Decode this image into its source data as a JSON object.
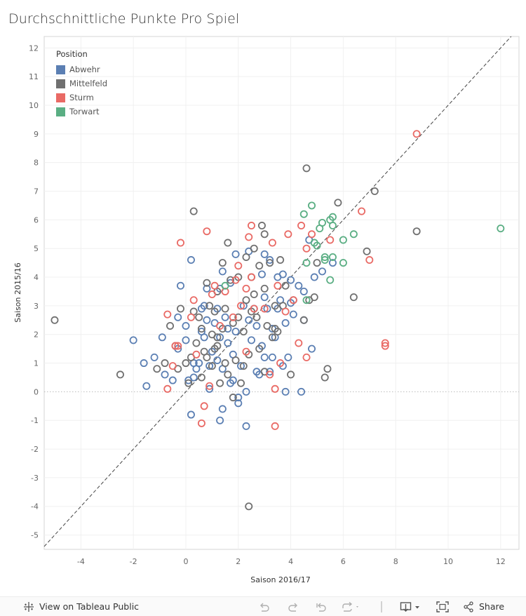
{
  "title": "Durchschnittliche Punkte Pro Spiel",
  "legend": {
    "title": "Position",
    "items": [
      {
        "label": "Abwehr",
        "color": "#5b7fb3"
      },
      {
        "label": "Mittelfeld",
        "color": "#707070"
      },
      {
        "label": "Sturm",
        "color": "#e96a65"
      },
      {
        "label": "Torwart",
        "color": "#5aae83"
      }
    ]
  },
  "toolbar": {
    "view_label": "View on Tableau Public",
    "share_label": "Share"
  },
  "chart_data": {
    "type": "scatter",
    "title": "Durchschnittliche Punkte Pro Spiel",
    "xlabel": "Saison 2016/17",
    "ylabel": "Saison 2015/16",
    "xlim": [
      -5.4,
      12.7
    ],
    "ylim": [
      -5.5,
      12.4
    ],
    "xticks": [
      -4,
      -2,
      0,
      2,
      4,
      6,
      8,
      10,
      12
    ],
    "yticks": [
      -5,
      -4,
      -3,
      -2,
      -1,
      0,
      1,
      2,
      3,
      4,
      5,
      6,
      7,
      8,
      9,
      10,
      11,
      12
    ],
    "reference_line": "y = x",
    "series": [
      {
        "name": "Abwehr",
        "color": "#5b7fb3",
        "points": [
          [
            -2.0,
            1.8
          ],
          [
            -1.6,
            1.0
          ],
          [
            -1.2,
            1.2
          ],
          [
            -0.9,
            1.9
          ],
          [
            -0.8,
            0.6
          ],
          [
            -1.5,
            0.2
          ],
          [
            -0.5,
            0.4
          ],
          [
            -0.3,
            1.5
          ],
          [
            -0.3,
            2.6
          ],
          [
            -0.2,
            3.7
          ],
          [
            0.0,
            1.8
          ],
          [
            0.0,
            2.3
          ],
          [
            0.1,
            0.4
          ],
          [
            0.2,
            4.6
          ],
          [
            0.2,
            -0.8
          ],
          [
            0.3,
            1.0
          ],
          [
            0.3,
            0.5
          ],
          [
            0.5,
            1.0
          ],
          [
            0.6,
            2.9
          ],
          [
            0.7,
            3.0
          ],
          [
            0.7,
            1.9
          ],
          [
            0.8,
            3.6
          ],
          [
            0.8,
            2.5
          ],
          [
            0.9,
            0.9
          ],
          [
            0.9,
            0.1
          ],
          [
            1.0,
            1.4
          ],
          [
            1.1,
            2.4
          ],
          [
            1.2,
            2.9
          ],
          [
            1.2,
            1.1
          ],
          [
            1.3,
            3.6
          ],
          [
            1.3,
            1.9
          ],
          [
            1.3,
            -1.0
          ],
          [
            1.4,
            4.2
          ],
          [
            1.4,
            0.8
          ],
          [
            1.4,
            -0.6
          ],
          [
            1.5,
            2.6
          ],
          [
            1.6,
            1.7
          ],
          [
            1.6,
            2.2
          ],
          [
            1.7,
            3.8
          ],
          [
            1.8,
            1.3
          ],
          [
            1.8,
            0.4
          ],
          [
            1.9,
            4.8
          ],
          [
            1.9,
            2.1
          ],
          [
            2.0,
            -0.2
          ],
          [
            2.0,
            -0.4
          ],
          [
            2.2,
            3.0
          ],
          [
            2.3,
            0.0
          ],
          [
            2.3,
            -1.2
          ],
          [
            2.4,
            4.9
          ],
          [
            2.4,
            2.5
          ],
          [
            2.5,
            1.8
          ],
          [
            2.6,
            2.9
          ],
          [
            2.7,
            0.7
          ],
          [
            2.8,
            0.6
          ],
          [
            2.9,
            1.6
          ],
          [
            2.9,
            4.1
          ],
          [
            3.0,
            3.3
          ],
          [
            3.0,
            1.2
          ],
          [
            3.0,
            4.8
          ],
          [
            3.1,
            2.9
          ],
          [
            3.2,
            4.6
          ],
          [
            3.3,
            1.2
          ],
          [
            3.3,
            2.2
          ],
          [
            3.4,
            1.9
          ],
          [
            3.5,
            4.0
          ],
          [
            3.5,
            2.9
          ],
          [
            3.6,
            3.2
          ],
          [
            3.7,
            0.9
          ],
          [
            3.7,
            4.1
          ],
          [
            3.8,
            2.4
          ],
          [
            3.8,
            0.0
          ],
          [
            3.9,
            1.2
          ],
          [
            4.0,
            3.9
          ],
          [
            4.0,
            3.1
          ],
          [
            4.1,
            2.7
          ],
          [
            4.3,
            3.7
          ],
          [
            4.4,
            0.0
          ],
          [
            4.5,
            3.5
          ],
          [
            4.5,
            2.5
          ],
          [
            4.7,
            5.3
          ],
          [
            4.8,
            1.5
          ],
          [
            4.9,
            4.0
          ],
          [
            5.2,
            4.2
          ],
          [
            5.6,
            4.5
          ],
          [
            3.2,
            0.7
          ],
          [
            2.1,
            0.9
          ],
          [
            0.4,
            0.8
          ],
          [
            0.6,
            2.1
          ],
          [
            1.7,
            0.3
          ],
          [
            2.7,
            2.3
          ]
        ]
      },
      {
        "name": "Mittelfeld",
        "color": "#707070",
        "points": [
          [
            -5.0,
            2.5
          ],
          [
            -2.5,
            0.6
          ],
          [
            -1.1,
            0.8
          ],
          [
            -0.8,
            1.0
          ],
          [
            -0.6,
            2.3
          ],
          [
            -0.3,
            0.8
          ],
          [
            -0.2,
            2.9
          ],
          [
            0.0,
            1.0
          ],
          [
            0.1,
            0.3
          ],
          [
            0.2,
            1.2
          ],
          [
            0.3,
            2.8
          ],
          [
            0.3,
            6.3
          ],
          [
            0.4,
            1.7
          ],
          [
            0.5,
            2.6
          ],
          [
            0.6,
            0.5
          ],
          [
            0.6,
            2.2
          ],
          [
            0.7,
            1.4
          ],
          [
            0.8,
            3.8
          ],
          [
            0.9,
            3.0
          ],
          [
            1.0,
            2.0
          ],
          [
            1.0,
            0.9
          ],
          [
            1.1,
            2.8
          ],
          [
            1.1,
            1.5
          ],
          [
            1.2,
            1.9
          ],
          [
            1.2,
            3.5
          ],
          [
            1.3,
            0.3
          ],
          [
            1.4,
            4.5
          ],
          [
            1.4,
            2.2
          ],
          [
            1.5,
            1.0
          ],
          [
            1.6,
            0.6
          ],
          [
            1.6,
            5.2
          ],
          [
            1.7,
            3.9
          ],
          [
            1.8,
            2.4
          ],
          [
            1.8,
            -0.2
          ],
          [
            1.9,
            1.1
          ],
          [
            2.0,
            4.0
          ],
          [
            2.1,
            0.3
          ],
          [
            2.2,
            2.1
          ],
          [
            2.3,
            4.7
          ],
          [
            2.3,
            3.2
          ],
          [
            2.4,
            1.3
          ],
          [
            2.4,
            -4.0
          ],
          [
            2.5,
            2.8
          ],
          [
            2.5,
            4.0
          ],
          [
            2.6,
            5.0
          ],
          [
            2.7,
            2.6
          ],
          [
            2.8,
            1.5
          ],
          [
            2.8,
            4.4
          ],
          [
            2.9,
            5.8
          ],
          [
            3.0,
            0.7
          ],
          [
            3.0,
            3.6
          ],
          [
            3.1,
            2.3
          ],
          [
            3.2,
            4.5
          ],
          [
            3.3,
            1.9
          ],
          [
            3.4,
            3.0
          ],
          [
            3.5,
            2.1
          ],
          [
            3.6,
            4.6
          ],
          [
            3.7,
            3.0
          ],
          [
            3.8,
            3.7
          ],
          [
            4.0,
            0.6
          ],
          [
            4.1,
            3.2
          ],
          [
            4.5,
            2.5
          ],
          [
            4.6,
            7.8
          ],
          [
            4.7,
            3.2
          ],
          [
            4.9,
            3.3
          ],
          [
            5.0,
            4.5
          ],
          [
            5.3,
            0.5
          ],
          [
            5.4,
            0.8
          ],
          [
            5.8,
            6.6
          ],
          [
            6.4,
            3.3
          ],
          [
            6.9,
            4.9
          ],
          [
            7.2,
            7.0
          ],
          [
            8.8,
            5.6
          ],
          [
            2.2,
            0.9
          ],
          [
            1.5,
            2.9
          ],
          [
            0.8,
            1.2
          ],
          [
            3.4,
            2.2
          ],
          [
            2.0,
            2.6
          ],
          [
            2.6,
            3.4
          ],
          [
            3.0,
            5.5
          ],
          [
            1.2,
            1.6
          ],
          [
            -0.4,
            1.6
          ]
        ]
      },
      {
        "name": "Sturm",
        "color": "#e96a65",
        "points": [
          [
            -0.7,
            0.1
          ],
          [
            -0.7,
            2.7
          ],
          [
            -0.5,
            0.9
          ],
          [
            -0.4,
            1.6
          ],
          [
            -0.2,
            5.2
          ],
          [
            0.2,
            2.6
          ],
          [
            0.4,
            1.3
          ],
          [
            0.6,
            -1.1
          ],
          [
            0.7,
            -0.5
          ],
          [
            0.8,
            5.6
          ],
          [
            0.9,
            0.2
          ],
          [
            1.0,
            3.4
          ],
          [
            1.1,
            3.7
          ],
          [
            1.3,
            2.3
          ],
          [
            1.5,
            3.5
          ],
          [
            1.8,
            2.6
          ],
          [
            1.9,
            3.9
          ],
          [
            2.0,
            4.4
          ],
          [
            2.1,
            3.0
          ],
          [
            2.3,
            3.6
          ],
          [
            2.4,
            5.4
          ],
          [
            2.5,
            4.0
          ],
          [
            2.5,
            5.8
          ],
          [
            2.6,
            2.9
          ],
          [
            3.0,
            2.9
          ],
          [
            3.3,
            5.2
          ],
          [
            3.4,
            0.1
          ],
          [
            3.4,
            -1.2
          ],
          [
            3.5,
            3.7
          ],
          [
            3.6,
            1.0
          ],
          [
            3.8,
            2.8
          ],
          [
            3.9,
            5.5
          ],
          [
            4.1,
            3.2
          ],
          [
            4.3,
            1.7
          ],
          [
            4.4,
            5.8
          ],
          [
            4.6,
            1.2
          ],
          [
            4.6,
            5.0
          ],
          [
            4.8,
            5.5
          ],
          [
            5.5,
            5.3
          ],
          [
            6.7,
            6.3
          ],
          [
            7.0,
            4.6
          ],
          [
            7.6,
            1.7
          ],
          [
            7.6,
            1.6
          ],
          [
            8.8,
            9.0
          ],
          [
            2.3,
            1.4
          ],
          [
            3.2,
            0.6
          ],
          [
            0.3,
            3.2
          ],
          [
            -0.3,
            1.6
          ]
        ]
      },
      {
        "name": "Torwart",
        "color": "#5aae83",
        "points": [
          [
            4.5,
            6.2
          ],
          [
            4.8,
            6.5
          ],
          [
            5.1,
            5.7
          ],
          [
            5.2,
            5.9
          ],
          [
            5.3,
            4.7
          ],
          [
            5.3,
            4.6
          ],
          [
            5.5,
            6.0
          ],
          [
            5.6,
            6.1
          ],
          [
            5.6,
            5.8
          ],
          [
            5.6,
            4.7
          ],
          [
            5.5,
            3.9
          ],
          [
            6.0,
            4.5
          ],
          [
            6.0,
            5.3
          ],
          [
            6.4,
            5.5
          ],
          [
            4.9,
            5.2
          ],
          [
            5.0,
            5.1
          ],
          [
            4.6,
            4.5
          ],
          [
            4.6,
            3.2
          ],
          [
            1.5,
            3.7
          ],
          [
            12.0,
            5.7
          ]
        ]
      }
    ]
  }
}
